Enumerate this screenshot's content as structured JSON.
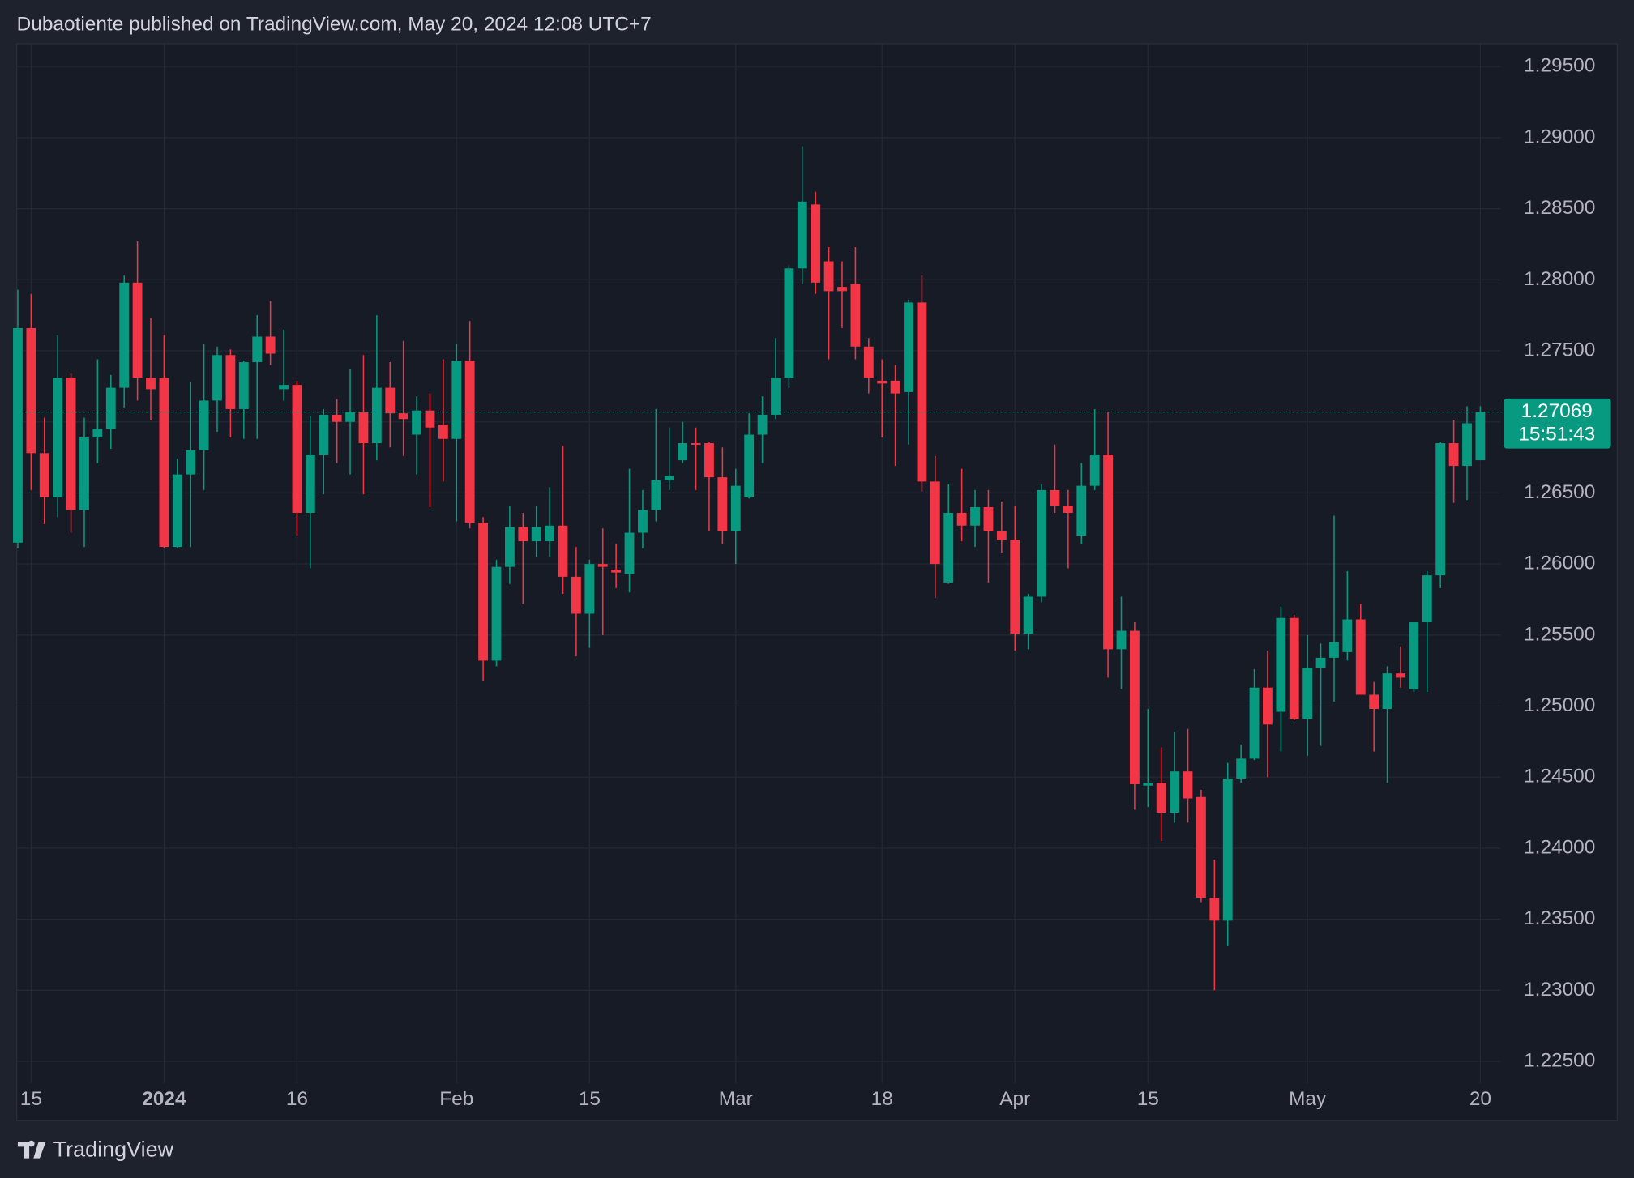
{
  "header": "Dubaotiente published on TradingView.com, May 20, 2024 12:08 UTC+7",
  "footer": "TradingView",
  "chart_data": {
    "type": "candlestick",
    "up_color": "#089981",
    "down_color": "#f23645",
    "grid": true,
    "countdown": "15:51:43",
    "ylim": [
      1.22346,
      1.29661
    ],
    "yticks": [
      {
        "value": 1.225,
        "label": "1.22500"
      },
      {
        "value": 1.23,
        "label": "1.23000"
      },
      {
        "value": 1.235,
        "label": "1.23500"
      },
      {
        "value": 1.24,
        "label": "1.24000"
      },
      {
        "value": 1.245,
        "label": "1.24500"
      },
      {
        "value": 1.25,
        "label": "1.25000"
      },
      {
        "value": 1.255,
        "label": "1.25500"
      },
      {
        "value": 1.26,
        "label": "1.26000"
      },
      {
        "value": 1.265,
        "label": "1.26500"
      },
      {
        "value": 1.27,
        "label": "1.27000"
      },
      {
        "value": 1.275,
        "label": "1.27500"
      },
      {
        "value": 1.28,
        "label": "1.28000"
      },
      {
        "value": 1.285,
        "label": "1.28500"
      },
      {
        "value": 1.29,
        "label": "1.29000"
      },
      {
        "value": 1.295,
        "label": "1.29500"
      }
    ],
    "categories": [
      null,
      "15",
      null,
      null,
      null,
      null,
      null,
      null,
      null,
      null,
      null,
      "2024",
      null,
      null,
      null,
      null,
      null,
      null,
      null,
      null,
      null,
      "16",
      null,
      null,
      null,
      null,
      null,
      null,
      null,
      null,
      null,
      null,
      null,
      "Feb",
      null,
      null,
      null,
      null,
      null,
      null,
      null,
      null,
      null,
      "15",
      null,
      null,
      null,
      null,
      null,
      null,
      null,
      null,
      null,
      null,
      "Mar",
      null,
      null,
      null,
      null,
      null,
      null,
      null,
      null,
      null,
      null,
      "18",
      null,
      null,
      null,
      null,
      null,
      null,
      null,
      null,
      null,
      "Apr",
      null,
      null,
      null,
      null,
      null,
      null,
      null,
      null,
      null,
      "15",
      null,
      null,
      null,
      null,
      null,
      null,
      null,
      null,
      null,
      null,
      null,
      "May",
      null,
      null,
      null,
      null,
      null,
      null,
      null,
      null,
      null,
      null,
      null,
      null,
      "20"
    ],
    "open": [
      1.2615,
      1.2766,
      1.2678,
      1.2647,
      1.2731,
      1.2638,
      1.2689,
      1.2695,
      1.2724,
      1.2798,
      1.2731,
      1.2731,
      1.2612,
      1.2663,
      1.268,
      1.2715,
      1.2747,
      1.2709,
      1.2742,
      1.276,
      1.2723,
      1.2726,
      1.2636,
      1.2677,
      1.2705,
      1.27,
      1.2707,
      1.2685,
      1.2724,
      1.2706,
      1.2691,
      1.2708,
      1.2698,
      1.2688,
      1.2743,
      1.2629,
      1.2532,
      1.2598,
      1.2626,
      1.2616,
      1.2616,
      1.2627,
      1.2591,
      1.2565,
      1.26,
      1.2596,
      1.2593,
      1.2622,
      1.2638,
      1.2659,
      1.2673,
      1.2685,
      1.2685,
      1.2661,
      1.2623,
      1.2647,
      1.2691,
      1.2705,
      1.2731,
      1.2808,
      1.2853,
      1.2813,
      1.2795,
      1.2797,
      1.2753,
      1.2729,
      1.2729,
      1.2721,
      1.2784,
      1.2658,
      1.2587,
      1.2636,
      1.2627,
      1.264,
      1.2623,
      1.2617,
      1.2551,
      1.2577,
      1.2652,
      1.2641,
      1.262,
      1.2655,
      1.2677,
      1.254,
      1.2553,
      1.2444,
      1.2446,
      1.2425,
      1.2454,
      1.2436,
      1.2365,
      1.2349,
      1.2449,
      1.2463,
      1.2513,
      1.2496,
      1.2562,
      1.2491,
      1.2527,
      1.2534,
      1.2538,
      1.2561,
      1.2508,
      1.2498,
      1.2523,
      1.2512,
      1.2559,
      1.2592,
      1.2685,
      1.2669,
      1.2673
    ],
    "high": [
      1.2793,
      1.279,
      1.2703,
      1.2761,
      1.2734,
      1.2703,
      1.2744,
      1.2733,
      1.2803,
      1.2827,
      1.2773,
      1.2761,
      1.2674,
      1.2728,
      1.2755,
      1.2753,
      1.2751,
      1.2743,
      1.2775,
      1.2785,
      1.2765,
      1.2729,
      1.2704,
      1.2709,
      1.2716,
      1.2737,
      1.2747,
      1.2775,
      1.2742,
      1.2757,
      1.2718,
      1.272,
      1.2744,
      1.2755,
      1.2771,
      1.2633,
      1.2603,
      1.2641,
      1.2636,
      1.2641,
      1.2654,
      1.2683,
      1.2612,
      1.2603,
      1.2625,
      1.2614,
      1.2667,
      1.2652,
      1.2709,
      1.2696,
      1.27,
      1.2696,
      1.2686,
      1.2682,
      1.2667,
      1.2706,
      1.2718,
      1.2759,
      1.281,
      1.2894,
      1.2862,
      1.2823,
      1.2813,
      1.2823,
      1.2759,
      1.2744,
      1.274,
      1.2786,
      1.2803,
      1.2676,
      1.2656,
      1.2667,
      1.2652,
      1.2652,
      1.2644,
      1.2641,
      1.2579,
      1.2656,
      1.2684,
      1.2652,
      1.2671,
      1.2709,
      1.2707,
      1.2577,
      1.2559,
      1.2498,
      1.2471,
      1.2482,
      1.2484,
      1.2441,
      1.2392,
      1.246,
      1.2473,
      1.2526,
      1.2539,
      1.257,
      1.2564,
      1.255,
      1.2544,
      1.2634,
      1.2595,
      1.2572,
      1.2517,
      1.2528,
      1.2542,
      1.2559,
      1.2595,
      1.2686,
      1.2701,
      1.2711,
      1.2711
    ],
    "low": [
      1.2611,
      1.2652,
      1.2628,
      1.2633,
      1.2622,
      1.2612,
      1.2671,
      1.2681,
      1.271,
      1.2715,
      1.2701,
      1.2611,
      1.2611,
      1.2612,
      1.2652,
      1.2693,
      1.2689,
      1.2688,
      1.2688,
      1.274,
      1.2715,
      1.262,
      1.2597,
      1.2649,
      1.2671,
      1.2663,
      1.2649,
      1.2673,
      1.2682,
      1.2676,
      1.2663,
      1.264,
      1.2658,
      1.263,
      1.2625,
      1.2518,
      1.2528,
      1.2586,
      1.2572,
      1.2605,
      1.2605,
      1.2579,
      1.2535,
      1.2541,
      1.255,
      1.2583,
      1.258,
      1.2611,
      1.263,
      1.2652,
      1.2671,
      1.2652,
      1.2623,
      1.2614,
      1.26,
      1.2646,
      1.2671,
      1.2702,
      1.2724,
      1.2797,
      1.279,
      1.2744,
      1.2766,
      1.2744,
      1.272,
      1.2689,
      1.2669,
      1.2684,
      1.2651,
      1.2576,
      1.2586,
      1.2616,
      1.2612,
      1.2587,
      1.2608,
      1.2539,
      1.254,
      1.2573,
      1.2636,
      1.2597,
      1.2614,
      1.2652,
      1.252,
      1.2512,
      1.2427,
      1.2429,
      1.2405,
      1.2418,
      1.2418,
      1.2362,
      1.23,
      1.2331,
      1.2446,
      1.2462,
      1.245,
      1.2468,
      1.249,
      1.2465,
      1.2472,
      1.2503,
      1.2532,
      1.2508,
      1.2468,
      1.2446,
      1.2513,
      1.251,
      1.251,
      1.2583,
      1.2643,
      1.2645,
      1.2673
    ],
    "close": [
      1.2766,
      1.2678,
      1.2647,
      1.2731,
      1.2638,
      1.2689,
      1.2695,
      1.2724,
      1.2798,
      1.2731,
      1.2723,
      1.2612,
      1.2663,
      1.268,
      1.2715,
      1.2747,
      1.2709,
      1.2742,
      1.276,
      1.2748,
      1.2726,
      1.2636,
      1.2677,
      1.2705,
      1.27,
      1.2707,
      1.2685,
      1.2724,
      1.2706,
      1.2702,
      1.2708,
      1.2696,
      1.2688,
      1.2743,
      1.2629,
      1.2532,
      1.2598,
      1.2626,
      1.2616,
      1.2626,
      1.2627,
      1.2591,
      1.2565,
      1.26,
      1.2598,
      1.2594,
      1.2622,
      1.2638,
      1.2659,
      1.2662,
      1.2685,
      1.2684,
      1.2661,
      1.2623,
      1.2655,
      1.2691,
      1.2705,
      1.2731,
      1.2808,
      1.2855,
      1.2798,
      1.2792,
      1.2792,
      1.2753,
      1.2731,
      1.2727,
      1.272,
      1.2784,
      1.2658,
      1.26,
      1.2636,
      1.2627,
      1.264,
      1.2623,
      1.2617,
      1.2551,
      1.2577,
      1.2652,
      1.2641,
      1.2636,
      1.2655,
      1.2677,
      1.254,
      1.2553,
      1.2445,
      1.2446,
      1.2425,
      1.2454,
      1.2435,
      1.2365,
      1.2349,
      1.2449,
      1.2463,
      1.2513,
      1.2487,
      1.2562,
      1.2491,
      1.2527,
      1.2534,
      1.2545,
      1.2561,
      1.2508,
      1.2498,
      1.2523,
      1.252,
      1.2559,
      1.2592,
      1.2685,
      1.2669,
      1.2699,
      1.27069
    ]
  }
}
